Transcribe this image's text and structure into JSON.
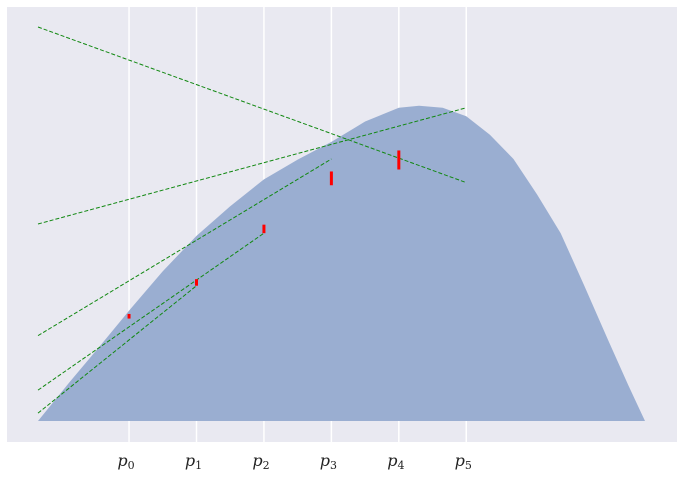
{
  "chart_data": {
    "type": "area",
    "title": "",
    "xlabel": "",
    "ylabel": "",
    "xlim": [
      0,
      9
    ],
    "ylim": [
      -0.2,
      6.3
    ],
    "grid": true,
    "ticks": [
      {
        "x": 1.35,
        "label": "p",
        "sub": "0"
      },
      {
        "x": 2.35,
        "label": "p",
        "sub": "1"
      },
      {
        "x": 3.35,
        "label": "p",
        "sub": "2"
      },
      {
        "x": 4.35,
        "label": "p",
        "sub": "3"
      },
      {
        "x": 5.35,
        "label": "p",
        "sub": "4"
      },
      {
        "x": 6.35,
        "label": "p",
        "sub": "5"
      }
    ],
    "area": {
      "x": [
        0,
        0.45,
        0.9,
        1.35,
        1.85,
        2.35,
        2.85,
        3.35,
        3.85,
        4.35,
        4.85,
        5.35,
        5.65,
        6.0,
        6.35,
        6.7,
        7.05,
        7.4,
        7.75,
        8.1,
        8.45,
        8.75,
        9.0
      ],
      "y": [
        0,
        0.57,
        1.12,
        1.68,
        2.28,
        2.82,
        3.27,
        3.68,
        3.98,
        4.25,
        4.56,
        4.77,
        4.8,
        4.77,
        4.64,
        4.36,
        3.99,
        3.45,
        2.86,
        2.06,
        1.24,
        0.55,
        0
      ],
      "color": "#9aaed1"
    },
    "tangents": [
      {
        "x": [
          0,
          6.35
        ],
        "y": [
          6.0,
          3.63
        ]
      },
      {
        "x": [
          0,
          6.35
        ],
        "y": [
          3.0,
          4.77
        ]
      },
      {
        "x": [
          0,
          4.35
        ],
        "y": [
          1.3,
          3.99
        ]
      },
      {
        "x": [
          0,
          3.35
        ],
        "y": [
          0.47,
          2.86
        ]
      },
      {
        "x": [
          0,
          2.35
        ],
        "y": [
          0.12,
          2.06
        ]
      }
    ],
    "tangent_color": "#118811",
    "errors": [
      {
        "x": 1.35,
        "y0": 1.56,
        "y1": 1.63
      },
      {
        "x": 2.35,
        "y0": 2.06,
        "y1": 2.16
      },
      {
        "x": 3.35,
        "y0": 2.86,
        "y1": 2.99
      },
      {
        "x": 4.35,
        "y0": 3.59,
        "y1": 3.8
      },
      {
        "x": 5.35,
        "y0": 3.83,
        "y1": 4.12
      }
    ],
    "error_color": "#ff0000",
    "background": "#e9e9f1"
  }
}
